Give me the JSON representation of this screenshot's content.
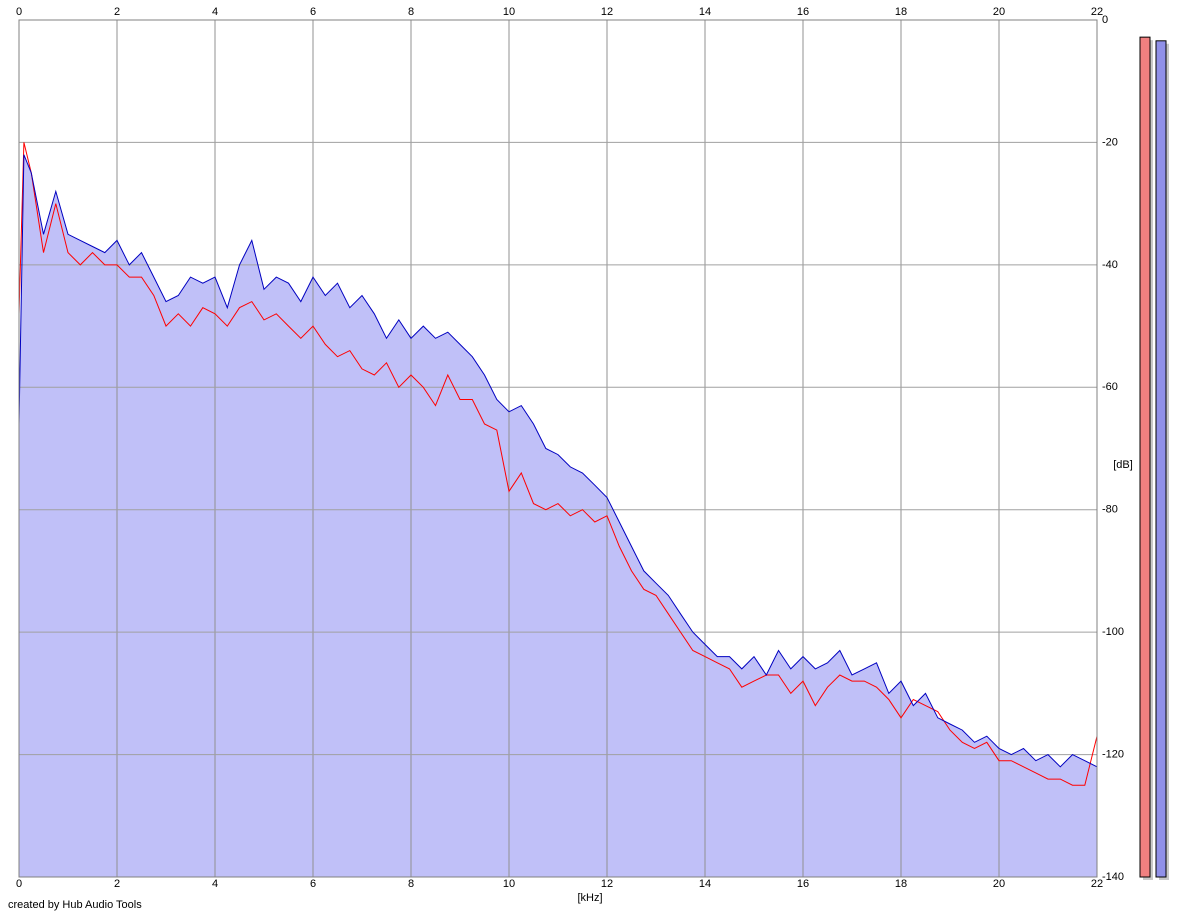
{
  "chart_data": {
    "type": "line",
    "x_label": "[kHz]",
    "y_label": "[dB]",
    "credit": "created by Hub Audio Tools",
    "xlim": [
      0,
      22
    ],
    "ylim": [
      -140,
      0
    ],
    "xticks": [
      0,
      2,
      4,
      6,
      8,
      10,
      12,
      14,
      16,
      18,
      20,
      22
    ],
    "yticks": [
      0,
      -20,
      -40,
      -60,
      -80,
      -100,
      -120,
      -140
    ],
    "grid": true,
    "fill_color": "#c0c0f8",
    "x": [
      0,
      0.1,
      0.25,
      0.5,
      0.75,
      1,
      1.25,
      1.5,
      1.75,
      2,
      2.25,
      2.5,
      2.75,
      3,
      3.25,
      3.5,
      3.75,
      4,
      4.25,
      4.5,
      4.75,
      5,
      5.25,
      5.5,
      5.75,
      6,
      6.25,
      6.5,
      6.75,
      7,
      7.25,
      7.5,
      7.75,
      8,
      8.25,
      8.5,
      8.75,
      9,
      9.25,
      9.5,
      9.75,
      10,
      10.25,
      10.5,
      10.75,
      11,
      11.25,
      11.5,
      11.75,
      12,
      12.25,
      12.5,
      12.75,
      13,
      13.25,
      13.5,
      13.75,
      14,
      14.25,
      14.5,
      14.75,
      15,
      15.25,
      15.5,
      15.75,
      16,
      16.25,
      16.5,
      16.75,
      17,
      17.25,
      17.5,
      17.75,
      18,
      18.25,
      18.5,
      18.75,
      19,
      19.25,
      19.5,
      19.75,
      20,
      20.25,
      20.5,
      20.75,
      21,
      21.25,
      21.5,
      21.75,
      22
    ],
    "series": [
      {
        "color": "#ff0000",
        "values": [
          -48,
          -20,
          -25,
          -38,
          -30,
          -38,
          -40,
          -38,
          -40,
          -40,
          -42,
          -42,
          -45,
          -50,
          -48,
          -50,
          -47,
          -48,
          -50,
          -47,
          -46,
          -49,
          -48,
          -50,
          -52,
          -50,
          -53,
          -55,
          -54,
          -57,
          -58,
          -56,
          -60,
          -58,
          -60,
          -63,
          -58,
          -62,
          -62,
          -66,
          -67,
          -77,
          -74,
          -79,
          -80,
          -79,
          -81,
          -80,
          -82,
          -81,
          -86,
          -90,
          -93,
          -94,
          -97,
          -100,
          -103,
          -104,
          -105,
          -106,
          -109,
          -108,
          -107,
          -107,
          -110,
          -108,
          -112,
          -109,
          -107,
          -108,
          -108,
          -109,
          -111,
          -114,
          -111,
          -112,
          -113,
          -116,
          -118,
          -119,
          -118,
          -121,
          -121,
          -122,
          -123,
          -124,
          -124,
          -125,
          -125,
          -117
        ]
      },
      {
        "color": "#0000c0",
        "values": [
          -66,
          -22,
          -25,
          -35,
          -28,
          -35,
          -36,
          -37,
          -38,
          -36,
          -40,
          -38,
          -42,
          -46,
          -45,
          -42,
          -43,
          -42,
          -47,
          -40,
          -36,
          -44,
          -42,
          -43,
          -46,
          -42,
          -45,
          -43,
          -47,
          -45,
          -48,
          -52,
          -49,
          -52,
          -50,
          -52,
          -51,
          -53,
          -55,
          -58,
          -62,
          -64,
          -63,
          -66,
          -70,
          -71,
          -73,
          -74,
          -76,
          -78,
          -82,
          -86,
          -90,
          -92,
          -94,
          -97,
          -100,
          -102,
          -104,
          -104,
          -106,
          -104,
          -107,
          -103,
          -106,
          -104,
          -106,
          -105,
          -103,
          -107,
          -106,
          -105,
          -110,
          -108,
          -112,
          -110,
          -114,
          -115,
          -116,
          -118,
          -117,
          -119,
          -120,
          -119,
          -121,
          -120,
          -122,
          -120,
          -121,
          -122
        ]
      }
    ],
    "meters": [
      {
        "color": "#f08080",
        "value": -2.8
      },
      {
        "color": "#9090e8",
        "value": -3.4
      }
    ]
  }
}
